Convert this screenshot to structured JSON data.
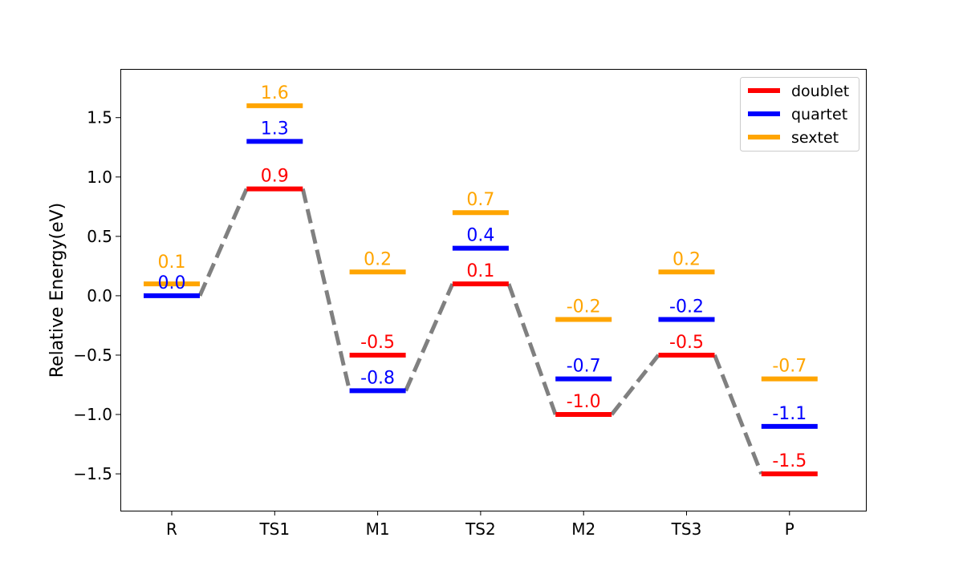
{
  "chart_data": {
    "type": "energy-level-diagram",
    "title": "",
    "xlabel": "",
    "ylabel": "Relative Energy(eV)",
    "categories": [
      "R",
      "TS1",
      "M1",
      "TS2",
      "M2",
      "TS3",
      "P"
    ],
    "ylim": [
      -1.81,
      1.91
    ],
    "yticks": [
      -1.5,
      -1.0,
      -0.5,
      0.0,
      0.5,
      1.0,
      1.5
    ],
    "ytick_labels": [
      "−1.5",
      "−1.0",
      "−0.5",
      "0.0",
      "0.5",
      "1.0",
      "1.5"
    ],
    "grid": false,
    "legend_position": "top-right",
    "series": [
      {
        "name": "doublet",
        "color": "#ff0000",
        "values": [
          null,
          0.9,
          -0.5,
          0.1,
          -1.0,
          -0.5,
          -1.5
        ],
        "labels": [
          null,
          "0.9",
          "-0.5",
          "0.1",
          "-1.0",
          "-0.5",
          "-1.5"
        ]
      },
      {
        "name": "quartet",
        "color": "#0000ff",
        "values": [
          0.0,
          1.3,
          -0.8,
          0.4,
          -0.7,
          -0.2,
          -1.1
        ],
        "labels": [
          "0.0",
          "1.3",
          "-0.8",
          "0.4",
          "-0.7",
          "-0.2",
          "-1.1"
        ]
      },
      {
        "name": "sextet",
        "color": "#ffa500",
        "values": [
          0.1,
          1.6,
          0.2,
          0.7,
          -0.2,
          0.2,
          -0.7
        ],
        "labels": [
          "0.1",
          "1.6",
          "0.2",
          "0.7",
          "-0.2",
          "0.2",
          "-0.7"
        ]
      }
    ],
    "path": {
      "color": "#808080",
      "style": "dashed",
      "values": [
        0.0,
        0.9,
        -0.8,
        0.1,
        -1.0,
        -0.5,
        -1.5
      ]
    }
  }
}
